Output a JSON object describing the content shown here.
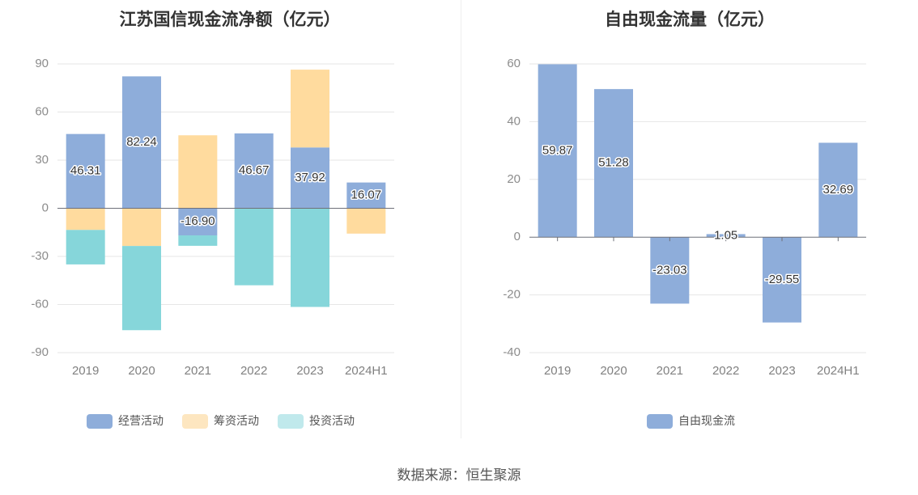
{
  "source_text": "数据来源：恒生聚源",
  "chart_data": [
    {
      "type": "bar",
      "stacked": true,
      "title": "江苏国信现金流净额（亿元）",
      "categories": [
        "2019",
        "2020",
        "2021",
        "2022",
        "2023",
        "2024H1"
      ],
      "ylim": [
        -90,
        90
      ],
      "yticks": [
        90,
        60,
        30,
        0,
        -30,
        -60,
        -90
      ],
      "grid": true,
      "legend_position": "bottom",
      "series": [
        {
          "name": "经营活动",
          "color": "#8eadda",
          "values": [
            46.31,
            82.24,
            -16.9,
            46.67,
            37.92,
            16.07
          ],
          "labeled": true
        },
        {
          "name": "筹资活动",
          "color": "#ffdb9e",
          "values": [
            -13.5,
            -23.5,
            45.5,
            0,
            48.5,
            -15.8
          ],
          "labeled": false
        },
        {
          "name": "投资活动",
          "color": "#86d6da",
          "values": [
            -21.5,
            -52.5,
            -6.5,
            -48,
            -61.5,
            0
          ],
          "labeled": false
        }
      ],
      "data_labels": [
        "46.31",
        "82.24",
        "-16.90",
        "46.67",
        "37.92",
        "16.07"
      ],
      "legend_colors": [
        "#8eadda",
        "#fde6c0",
        "#c0e9ec"
      ]
    },
    {
      "type": "bar",
      "title": "自由现金流量（亿元）",
      "categories": [
        "2019",
        "2020",
        "2021",
        "2022",
        "2023",
        "2024H1"
      ],
      "ylim": [
        -40,
        60
      ],
      "yticks": [
        60,
        40,
        20,
        0,
        -20,
        -40
      ],
      "grid": true,
      "legend_position": "bottom",
      "series": [
        {
          "name": "自由现金流",
          "color": "#8eadda",
          "values": [
            59.87,
            51.28,
            -23.03,
            1.05,
            -29.55,
            32.69
          ],
          "labeled": true
        }
      ],
      "data_labels": [
        "59.87",
        "51.28",
        "-23.03",
        "1.05",
        "-29.55",
        "32.69"
      ],
      "legend_colors": [
        "#8eadda"
      ]
    }
  ]
}
